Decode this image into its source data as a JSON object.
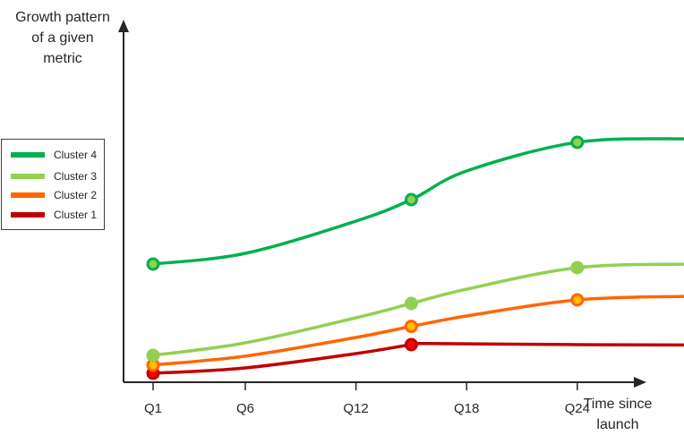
{
  "chart_data": {
    "type": "line",
    "ylabel": "Growth pattern of a given metric",
    "xlabel": "Time since launch",
    "x_ticks": [
      "Q1",
      "Q6",
      "Q12",
      "Q18",
      "Q24"
    ],
    "grid": false,
    "legend_position": "left",
    "series": [
      {
        "name": "Cluster 4",
        "color": "#00b050",
        "marker_color": "#92d050",
        "x": [
          1,
          6,
          12,
          15,
          18,
          24,
          30
        ],
        "y": [
          0.33,
          0.36,
          0.45,
          0.51,
          0.59,
          0.67,
          0.68
        ],
        "markers": [
          0,
          3,
          5
        ]
      },
      {
        "name": "Cluster 3",
        "color": "#92d050",
        "marker_color": "#92d050",
        "x": [
          1,
          6,
          12,
          15,
          18,
          24,
          30
        ],
        "y": [
          0.075,
          0.11,
          0.18,
          0.22,
          0.26,
          0.32,
          0.33
        ],
        "markers": [
          0,
          3,
          5
        ]
      },
      {
        "name": "Cluster 2",
        "color": "#ff6600",
        "marker_color": "#ffc000",
        "x": [
          1,
          6,
          12,
          15,
          18,
          24,
          30
        ],
        "y": [
          0.048,
          0.073,
          0.125,
          0.156,
          0.185,
          0.23,
          0.24
        ],
        "markers": [
          0,
          3,
          5
        ]
      },
      {
        "name": "Cluster 1",
        "color": "#c00000",
        "marker_color": "#ff0000",
        "x": [
          1,
          6,
          12,
          15,
          16,
          24,
          30
        ],
        "y": [
          0.025,
          0.04,
          0.08,
          0.105,
          0.108,
          0.105,
          0.104
        ],
        "markers": [
          0,
          3
        ]
      }
    ]
  }
}
